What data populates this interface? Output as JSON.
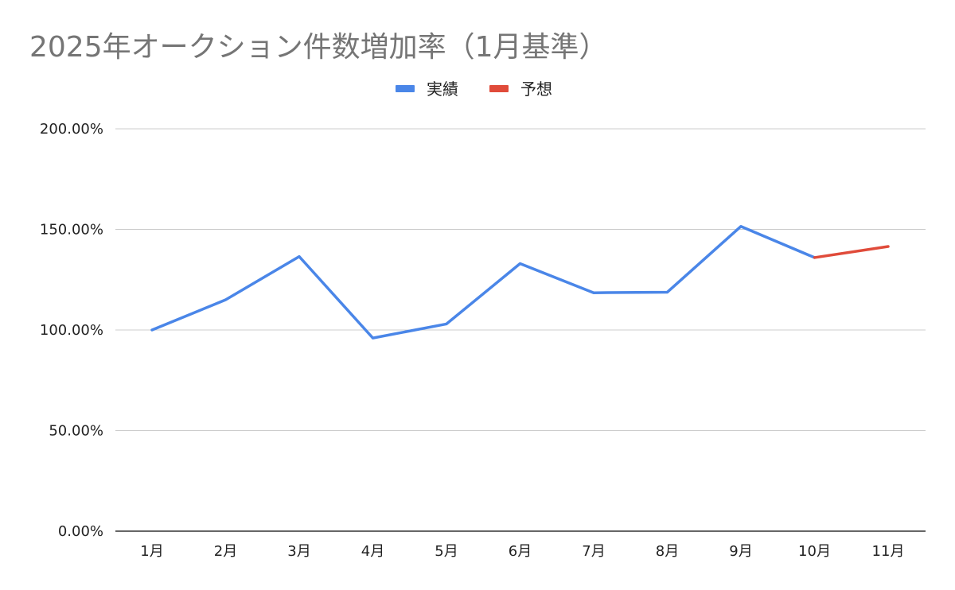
{
  "chart_data": {
    "type": "line",
    "title": "2025年オークション件数増加率（1月基準）",
    "categories": [
      "1月",
      "2月",
      "3月",
      "4月",
      "5月",
      "6月",
      "7月",
      "8月",
      "9月",
      "10月",
      "11月"
    ],
    "series": [
      {
        "name": "実績",
        "color": "#4a86e8",
        "values": [
          100.0,
          115.0,
          136.5,
          96.0,
          103.0,
          133.0,
          118.5,
          118.8,
          151.5,
          136.0,
          null
        ]
      },
      {
        "name": "予想",
        "color": "#e04b3a",
        "values": [
          null,
          null,
          null,
          null,
          null,
          null,
          null,
          null,
          null,
          136.0,
          141.5
        ]
      }
    ],
    "ylim": [
      0,
      200
    ],
    "yticks": [
      0,
      50,
      100,
      150,
      200
    ],
    "ytick_labels": [
      "0.00%",
      "50.00%",
      "100.00%",
      "150.00%",
      "200.00%"
    ],
    "xlabel": "",
    "ylabel": "",
    "legend_position": "top-center",
    "grid": true
  }
}
